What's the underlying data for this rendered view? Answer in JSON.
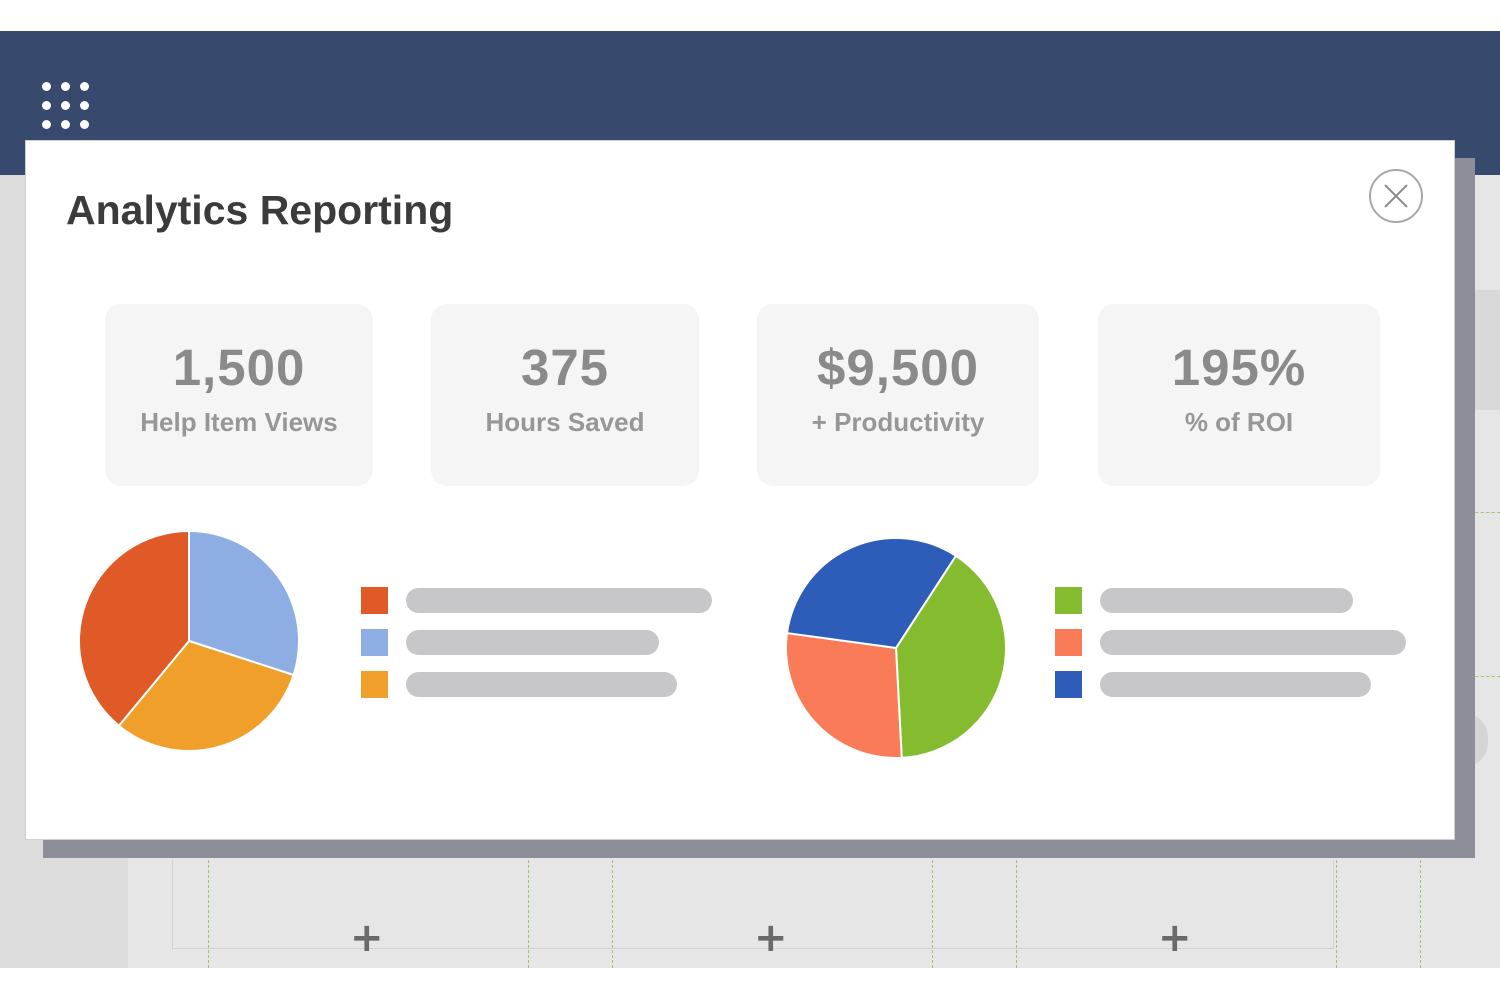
{
  "app": {
    "apps_icon": "grid-icon",
    "add_buttons": [
      "+",
      "+",
      "+"
    ]
  },
  "modal": {
    "title": "Analytics Reporting",
    "close_icon": "close-icon",
    "stats": [
      {
        "value": "1,500",
        "label": "Help Item Views"
      },
      {
        "value": "375",
        "label": "Hours Saved"
      },
      {
        "value": "$9,500",
        "label": "+ Productivity"
      },
      {
        "value": "195%",
        "label": "% of ROI"
      }
    ]
  },
  "chart_data": [
    {
      "type": "pie",
      "title": "",
      "slices": [
        {
          "label": "",
          "value": 30,
          "color": "#8eaee3"
        },
        {
          "label": "",
          "value": 31,
          "color": "#f0a02a"
        },
        {
          "label": "",
          "value": 39,
          "color": "#e05a27"
        }
      ],
      "legend": [
        {
          "label": "",
          "color": "#e05a27"
        },
        {
          "label": "",
          "color": "#8eaee3"
        },
        {
          "label": "",
          "color": "#f0a02a"
        }
      ]
    },
    {
      "type": "pie",
      "title": "",
      "slices": [
        {
          "label": "",
          "value": 40,
          "color": "#85bc2f"
        },
        {
          "label": "",
          "value": 28,
          "color": "#fa7b58"
        },
        {
          "label": "",
          "value": 32,
          "color": "#2d5db8"
        }
      ],
      "legend": [
        {
          "label": "",
          "color": "#85bc2f"
        },
        {
          "label": "",
          "color": "#fa7b58"
        },
        {
          "label": "",
          "color": "#2d5db8"
        }
      ]
    }
  ]
}
